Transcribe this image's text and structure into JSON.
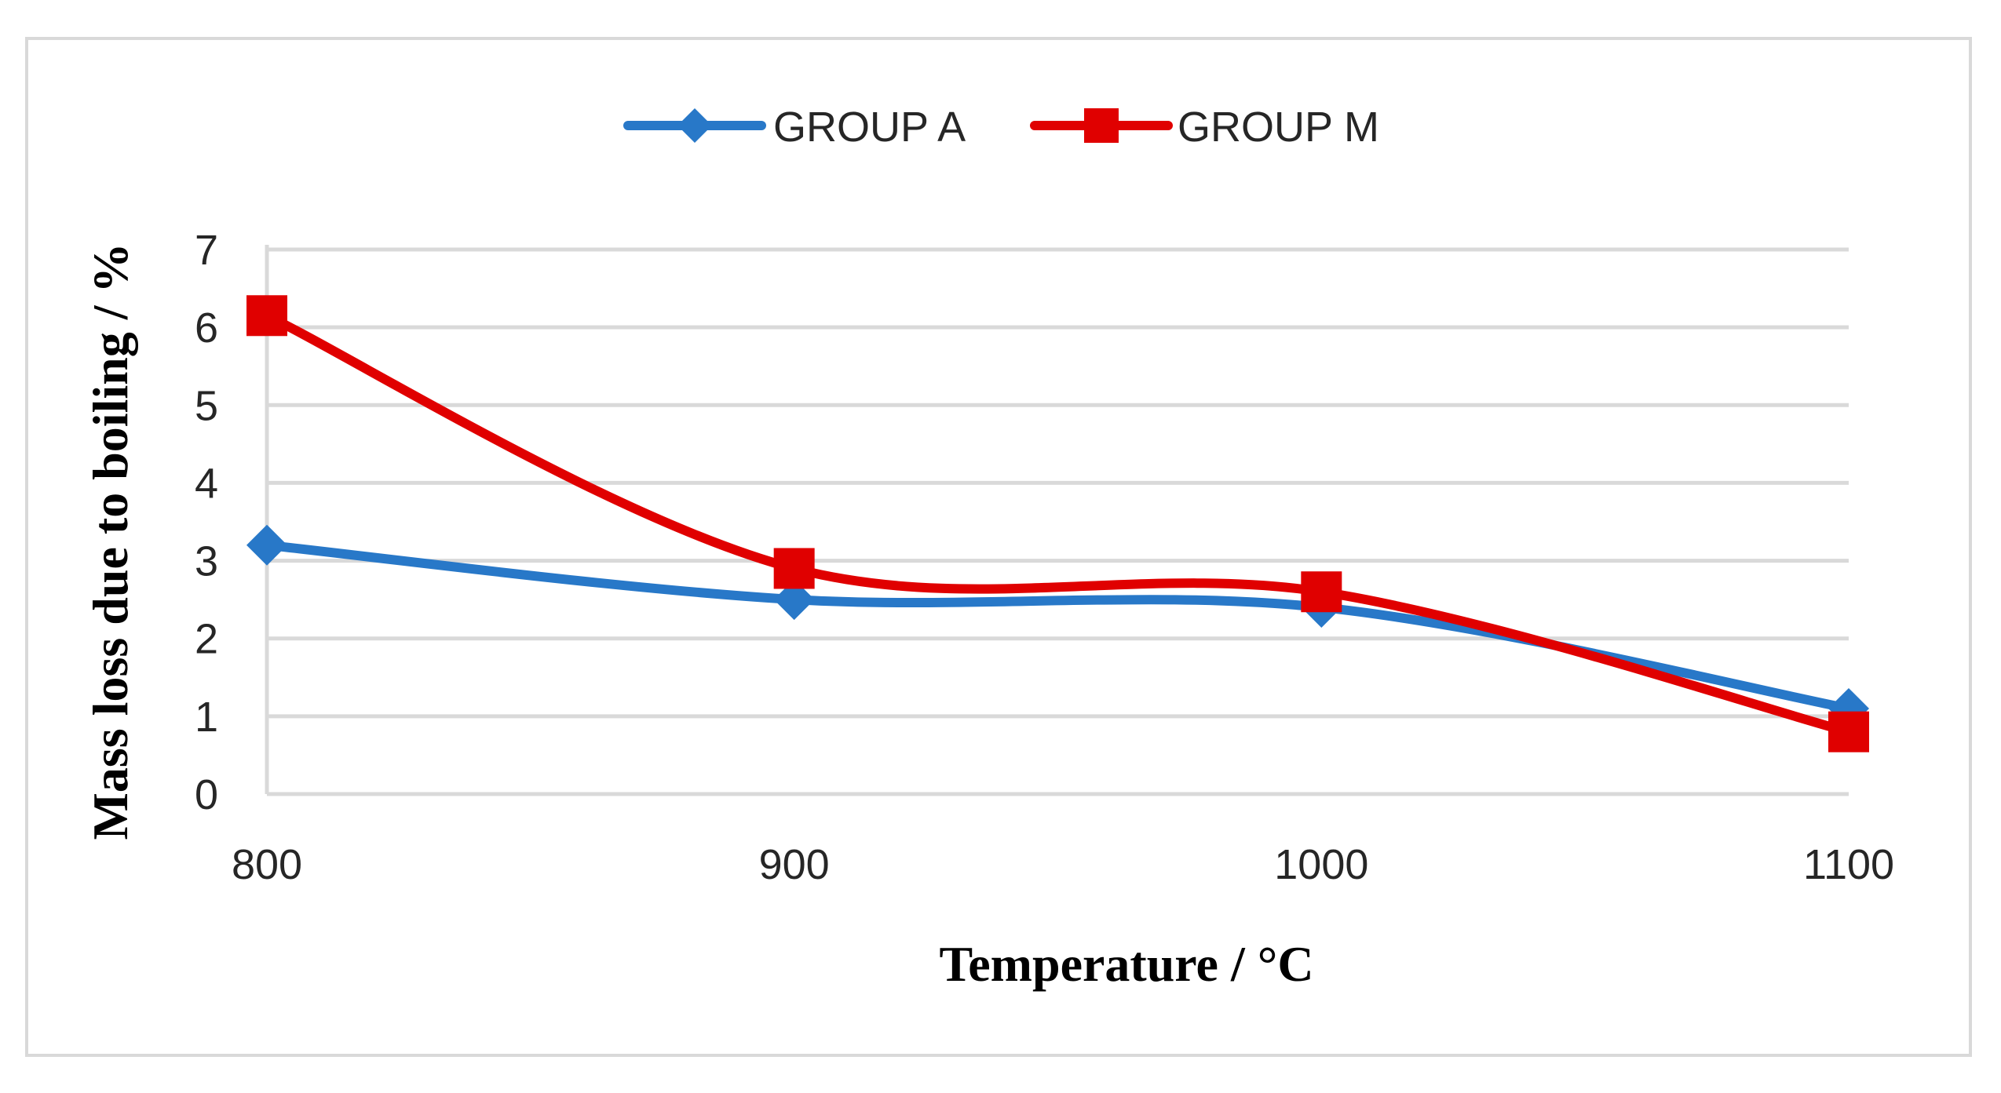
{
  "chart_data": {
    "type": "line",
    "title": "",
    "xlabel": "Temperature / °C",
    "ylabel": "Mass loss due to boiling / %",
    "categories": [
      "800",
      "900",
      "1000",
      "1100"
    ],
    "ylim": [
      0,
      7
    ],
    "yticks": [
      "0",
      "1",
      "2",
      "3",
      "4",
      "5",
      "6",
      "7"
    ],
    "grid": true,
    "legend_position": "top",
    "smooth": true,
    "series": [
      {
        "name": "GROUP A",
        "values": [
          3.2,
          2.5,
          2.4,
          1.1
        ],
        "color": "#2878c8",
        "marker": "diamond"
      },
      {
        "name": "GROUP M",
        "values": [
          6.15,
          2.9,
          2.6,
          0.8
        ],
        "color": "#e00000",
        "marker": "square"
      }
    ]
  }
}
